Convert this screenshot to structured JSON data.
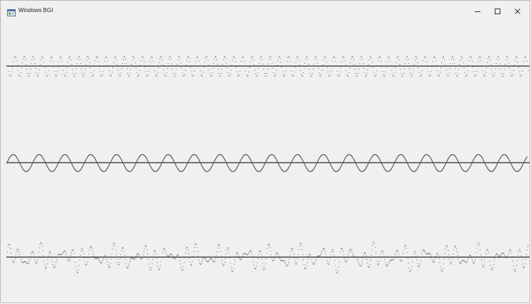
{
  "window": {
    "title": "Windows BGI",
    "icon": "app-window-icon",
    "controls": [
      {
        "name": "minimize-button",
        "icon": "minimize-icon"
      },
      {
        "name": "maximize-button",
        "icon": "maximize-icon"
      },
      {
        "name": "close-button",
        "icon": "close-icon"
      }
    ]
  },
  "canvas": {
    "background": "#f0f0f0",
    "stroke_color": "#5a5a5a"
  }
}
